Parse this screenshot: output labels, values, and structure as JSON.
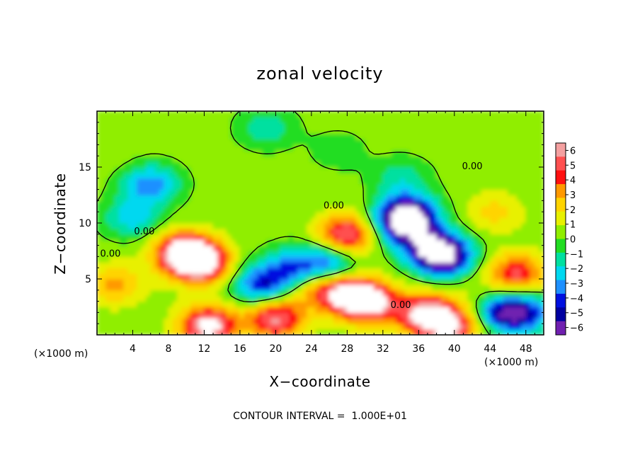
{
  "chart_data": {
    "type": "heatmap",
    "title": "zonal velocity",
    "xlabel": "X−coordinate",
    "ylabel": "Z−coordinate",
    "x_unit": "(×1000 m)",
    "z_unit": "(×1000 m)",
    "xlim": [
      0,
      50
    ],
    "ylim": [
      0,
      20
    ],
    "x_ticks": [
      "4",
      "8",
      "12",
      "16",
      "20",
      "24",
      "28",
      "32",
      "36",
      "40",
      "44",
      "48"
    ],
    "x_tick_values": [
      4,
      8,
      12,
      16,
      20,
      24,
      28,
      32,
      36,
      40,
      44,
      48
    ],
    "y_ticks": [
      "5",
      "10",
      "15"
    ],
    "y_tick_values": [
      5,
      10,
      15
    ],
    "colorbar": {
      "labels": [
        "6",
        "5",
        "4",
        "3",
        "2",
        "1",
        "0",
        "−1",
        "−2",
        "−3",
        "−4",
        "−5",
        "−6"
      ],
      "values": [
        6,
        5,
        4,
        3,
        2,
        1,
        0,
        -1,
        -2,
        -3,
        -4,
        -5,
        -6
      ],
      "colors": [
        "#f4a0a0",
        "#ff5050",
        "#ff1010",
        "#ff9900",
        "#ffd400",
        "#e8f000",
        "#90ee00",
        "#22dd22",
        "#00e0a0",
        "#00d8f0",
        "#1e90ff",
        "#0010e0",
        "#0000a0",
        "#7020b0"
      ],
      "saturated_color": "#ffffff"
    },
    "contour_labels": [
      "0.00",
      "0.00",
      "0.00",
      "0.00",
      "0.00"
    ],
    "contour_label_positions": [
      {
        "x": 5.3,
        "z": 9.0
      },
      {
        "x": 26.5,
        "z": 11.3
      },
      {
        "x": 42.0,
        "z": 14.8
      },
      {
        "x": 34.0,
        "z": 2.4
      },
      {
        "x": 1.5,
        "z": 7.0
      }
    ],
    "features": [
      {
        "x": 11.5,
        "z": 6.5,
        "value": 8
      },
      {
        "x": 9.5,
        "z": 7.5,
        "value": 6
      },
      {
        "x": 12.5,
        "z": 0.8,
        "value": 7
      },
      {
        "x": 20.0,
        "z": 1.5,
        "value": 6
      },
      {
        "x": 28.5,
        "z": 3.5,
        "value": 7
      },
      {
        "x": 31.0,
        "z": 2.8,
        "value": 5
      },
      {
        "x": 37.0,
        "z": 1.8,
        "value": 7
      },
      {
        "x": 40.0,
        "z": 0.7,
        "value": 5
      },
      {
        "x": 28.0,
        "z": 9.0,
        "value": 6
      },
      {
        "x": 47.0,
        "z": 5.5,
        "value": 5
      },
      {
        "x": 24.5,
        "z": 4.2,
        "value": 3
      },
      {
        "x": 2.0,
        "z": 4.5,
        "value": 3
      },
      {
        "x": 44.5,
        "z": 11.0,
        "value": 2
      },
      {
        "x": 6.0,
        "z": 13.5,
        "value": -4
      },
      {
        "x": 4.0,
        "z": 10.5,
        "value": -3
      },
      {
        "x": 34.0,
        "z": 10.0,
        "value": -5
      },
      {
        "x": 35.0,
        "z": 10.8,
        "value": -6
      },
      {
        "x": 37.0,
        "z": 8.0,
        "value": -5
      },
      {
        "x": 39.0,
        "z": 7.0,
        "value": -7
      },
      {
        "x": 22.0,
        "z": 6.0,
        "value": -4
      },
      {
        "x": 26.0,
        "z": 6.5,
        "value": -4
      },
      {
        "x": 18.5,
        "z": 4.5,
        "value": -5
      },
      {
        "x": 45.5,
        "z": 2.0,
        "value": -5
      },
      {
        "x": 48.0,
        "z": 2.0,
        "value": -4
      },
      {
        "x": 34.0,
        "z": 14.0,
        "value": -2
      },
      {
        "x": 27.0,
        "z": 16.5,
        "value": -1
      },
      {
        "x": 19.0,
        "z": 18.5,
        "value": -2
      },
      {
        "x": 44.0,
        "z": 16.0,
        "value": 0.5
      },
      {
        "x": 2.0,
        "z": 16.0,
        "value": 0.3
      },
      {
        "x": 42.0,
        "z": 4.0,
        "value": 0.5
      }
    ],
    "footer": "CONTOUR INTERVAL =  1.000E+01"
  }
}
